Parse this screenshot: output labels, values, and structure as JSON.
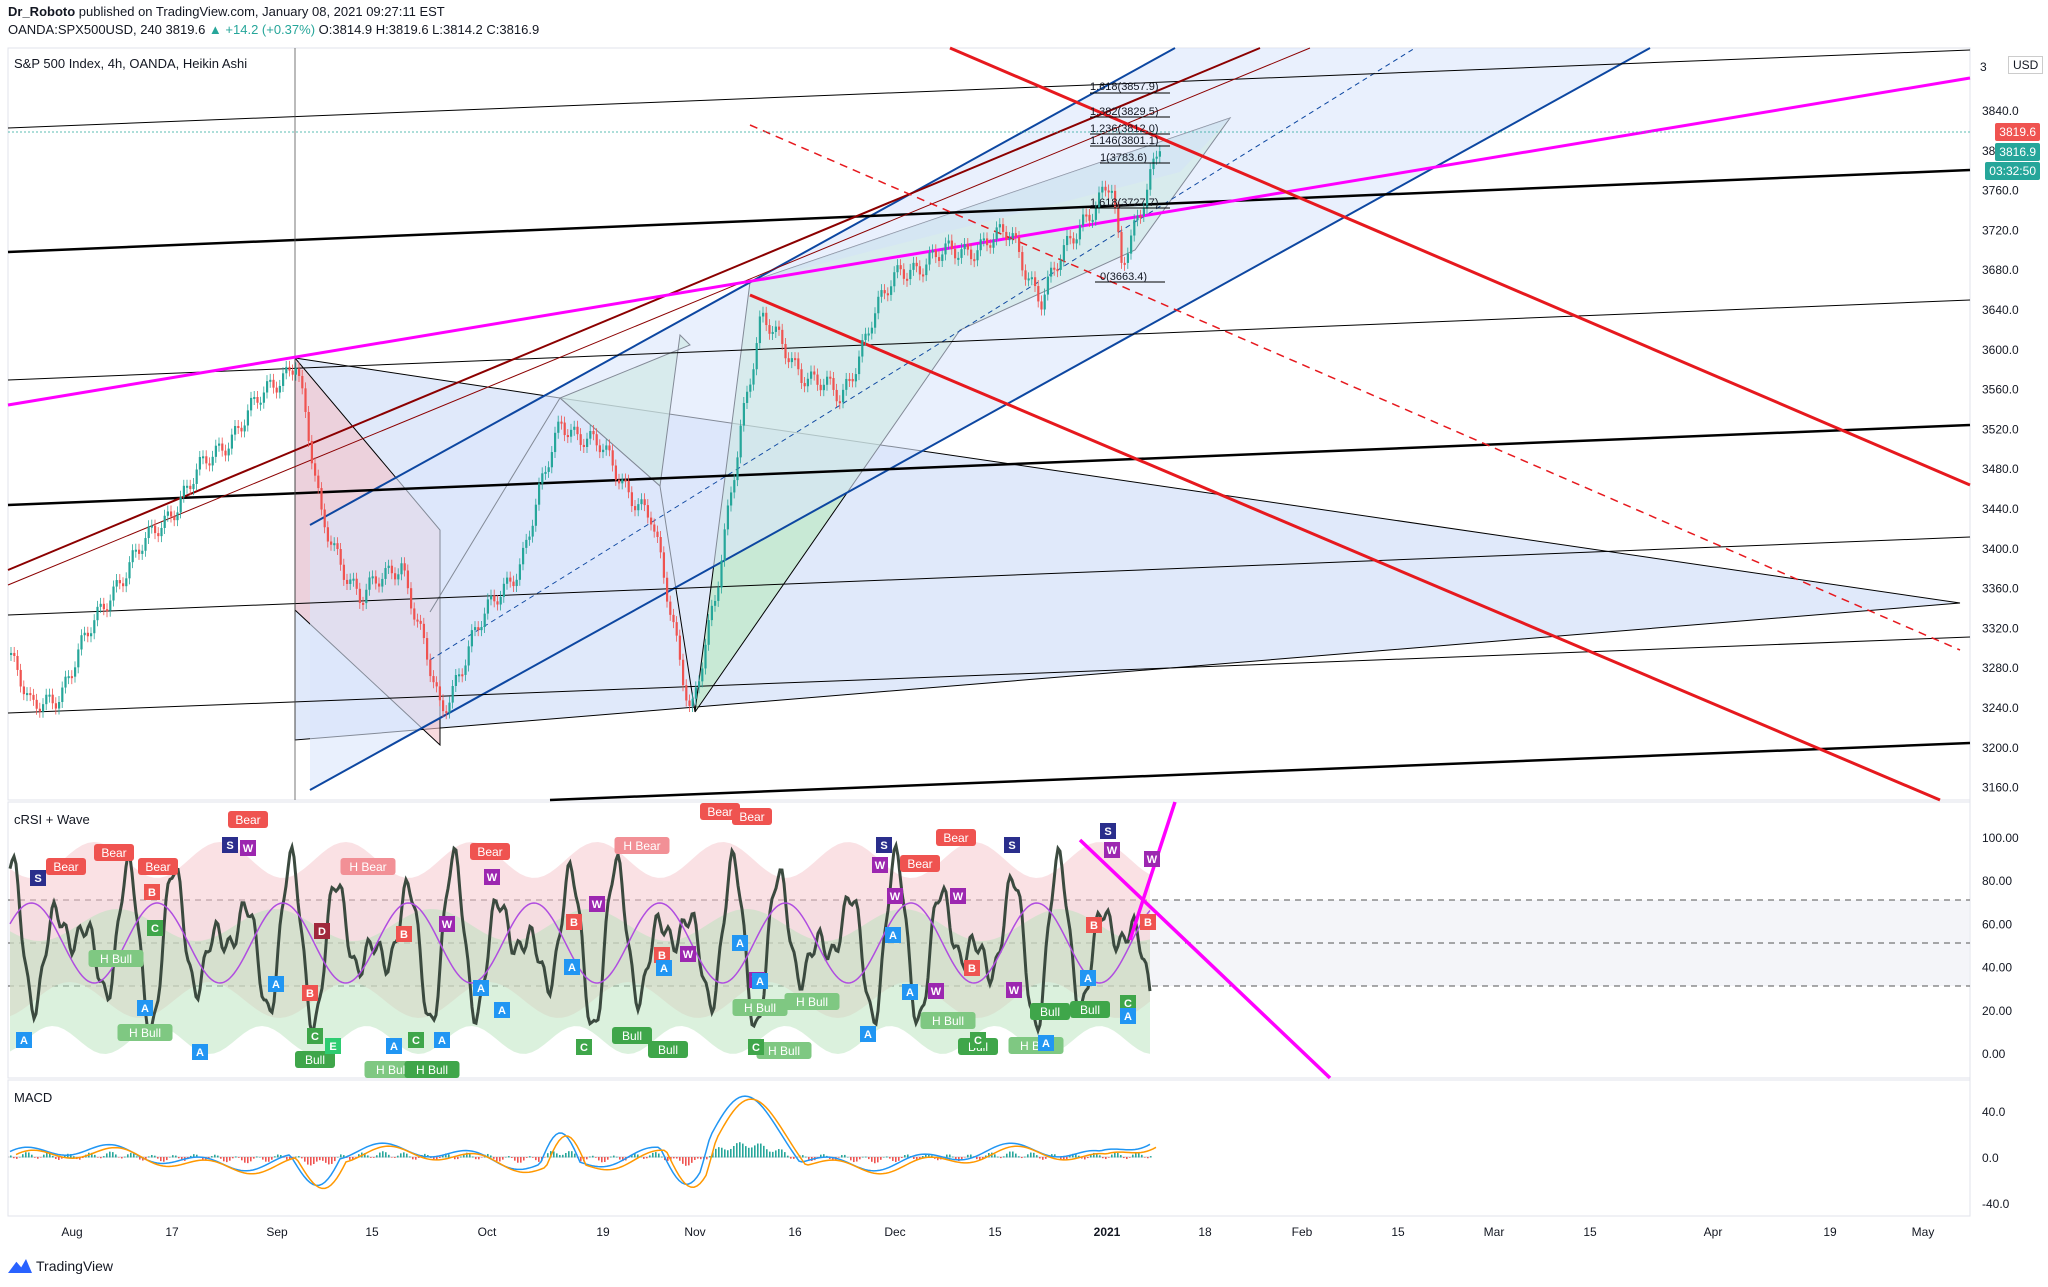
{
  "header": {
    "author": "Dr_Roboto",
    "published": "published on TradingView.com, January 08, 2021 09:27:11 EST",
    "symbol": "OANDA:SPX500USD, 240",
    "last": "3819.6",
    "change": "▲ +14.2 (+0.37%)",
    "open": "O:3814.9",
    "high": "H:3819.6",
    "low": "L:3814.2",
    "close": "C:3816.9"
  },
  "main_pane": {
    "title": "S&P 500 Index, 4h, OANDA, Heikin Ashi",
    "currency": "USD",
    "price_ticks": [
      "3840.0",
      "3800.0",
      "3760.0",
      "3720.0",
      "3680.0",
      "3640.0",
      "3600.0",
      "3560.0",
      "3520.0",
      "3480.0",
      "3440.0",
      "3400.0",
      "3360.0",
      "3320.0",
      "3280.0",
      "3240.0",
      "3200.0",
      "3160.0"
    ],
    "top_tick": "3",
    "price_labels": {
      "last": "3819.6",
      "close": "3816.9",
      "countdown": "03:32:50"
    },
    "fib_levels": [
      "1.618(3857.9)",
      "1.382(3829.5)",
      "1.236(3812.0)",
      "1.146(3801.1)",
      "1(3783.6)",
      "1.618(3727.7)",
      "0(3663.4)"
    ]
  },
  "rsi_pane": {
    "title": "cRSI + Wave",
    "ticks": [
      "100.00",
      "80.00",
      "60.00",
      "40.00",
      "20.00",
      "0.00"
    ],
    "signals": [
      "Bear",
      "Bear",
      "Bear",
      "Bear",
      "H Bear",
      "Bear",
      "H Bear",
      "Bear",
      "Bear",
      "Bear",
      "Bear",
      "H Bull",
      "H Bull",
      "H Bull",
      "Bull",
      "H Bull",
      "Bull",
      "H Bull",
      "H Bull",
      "H Bull",
      "H Bull",
      "Bull",
      "Bull",
      "H Bull",
      "Bull",
      "Bull"
    ]
  },
  "macd_pane": {
    "title": "MACD",
    "ticks": [
      "40.0",
      "0.0",
      "-40.0"
    ]
  },
  "time_axis": [
    "Aug",
    "17",
    "Sep",
    "15",
    "Oct",
    "19",
    "Nov",
    "16",
    "Dec",
    "15",
    "2021",
    "18",
    "Feb",
    "15",
    "Mar",
    "15",
    "Apr",
    "19",
    "May"
  ],
  "footer": {
    "brand": "TradingView"
  },
  "colors": {
    "up": "#26a69a",
    "down": "#ef5350",
    "fib_red": "#e6191e",
    "pink": "#ff00ff",
    "blue": "#0d47a1",
    "darkred": "#8b0000"
  }
}
